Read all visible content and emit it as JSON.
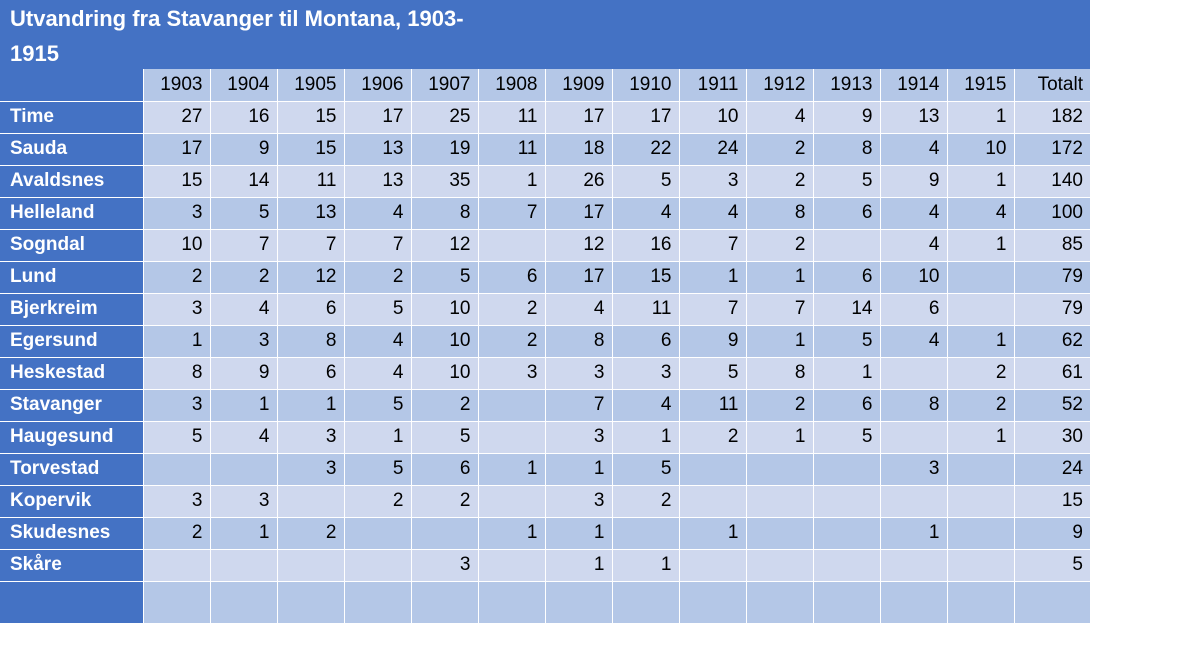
{
  "title": "Utvandring fra Stavanger til Montana, 1903-\n1915",
  "title_lines": [
    "Utvandring fra Stavanger til Montana, 1903-",
    "1915"
  ],
  "header": [
    "1903",
    "1904",
    "1905",
    "1906",
    "1907",
    "1908",
    "1909",
    "1910",
    "1911",
    "1912",
    "1913",
    "1914",
    "1915",
    "Totalt"
  ],
  "rows": [
    {
      "name": "Time",
      "values": [
        "27",
        "16",
        "15",
        "17",
        "25",
        "11",
        "17",
        "17",
        "10",
        "4",
        "9",
        "13",
        "1",
        "182"
      ]
    },
    {
      "name": "Sauda",
      "values": [
        "17",
        "9",
        "15",
        "13",
        "19",
        "11",
        "18",
        "22",
        "24",
        "2",
        "8",
        "4",
        "10",
        "172"
      ]
    },
    {
      "name": "Avaldsnes",
      "values": [
        "15",
        "14",
        "11",
        "13",
        "35",
        "1",
        "26",
        "5",
        "3",
        "2",
        "5",
        "9",
        "1",
        "140"
      ]
    },
    {
      "name": "Helleland",
      "values": [
        "3",
        "5",
        "13",
        "4",
        "8",
        "7",
        "17",
        "4",
        "4",
        "8",
        "6",
        "4",
        "4",
        "100"
      ]
    },
    {
      "name": "Sogndal",
      "values": [
        "10",
        "7",
        "7",
        "7",
        "12",
        "",
        "12",
        "16",
        "7",
        "2",
        "",
        "4",
        "1",
        "85"
      ]
    },
    {
      "name": "Lund",
      "values": [
        "2",
        "2",
        "12",
        "2",
        "5",
        "6",
        "17",
        "15",
        "1",
        "1",
        "6",
        "10",
        "",
        "79"
      ]
    },
    {
      "name": "Bjerkreim",
      "values": [
        "3",
        "4",
        "6",
        "5",
        "10",
        "2",
        "4",
        "11",
        "7",
        "7",
        "14",
        "6",
        "",
        "79"
      ]
    },
    {
      "name": "Egersund",
      "values": [
        "1",
        "3",
        "8",
        "4",
        "10",
        "2",
        "8",
        "6",
        "9",
        "1",
        "5",
        "4",
        "1",
        "62"
      ]
    },
    {
      "name": "Heskestad",
      "values": [
        "8",
        "9",
        "6",
        "4",
        "10",
        "3",
        "3",
        "3",
        "5",
        "8",
        "1",
        "",
        "2",
        "61"
      ]
    },
    {
      "name": "Stavanger",
      "values": [
        "3",
        "1",
        "1",
        "5",
        "2",
        "",
        "7",
        "4",
        "11",
        "2",
        "6",
        "8",
        "2",
        "52"
      ]
    },
    {
      "name": "Haugesund",
      "values": [
        "5",
        "4",
        "3",
        "1",
        "5",
        "",
        "3",
        "1",
        "2",
        "1",
        "5",
        "",
        "1",
        "30"
      ]
    },
    {
      "name": "Torvestad",
      "values": [
        "",
        "",
        "3",
        "5",
        "6",
        "1",
        "1",
        "5",
        "",
        "",
        "",
        "3",
        "",
        "24"
      ]
    },
    {
      "name": "Kopervik",
      "values": [
        "3",
        "3",
        "",
        "2",
        "2",
        "",
        "3",
        "2",
        "",
        "",
        "",
        "",
        "",
        "15"
      ]
    },
    {
      "name": "Skudesnes",
      "values": [
        "2",
        "1",
        "2",
        "",
        "",
        "1",
        "1",
        "",
        "1",
        "",
        "",
        "1",
        "",
        "9"
      ]
    },
    {
      "name": "Skåre",
      "values": [
        "",
        "",
        "",
        "",
        "3",
        "",
        "1",
        "1",
        "",
        "",
        "",
        "",
        "",
        "5"
      ]
    }
  ],
  "colors": {
    "header_blue": "#4472C4",
    "light_row": "#CFD8EE",
    "dark_row": "#B4C7E7",
    "title_text": "#FFFFFF"
  }
}
